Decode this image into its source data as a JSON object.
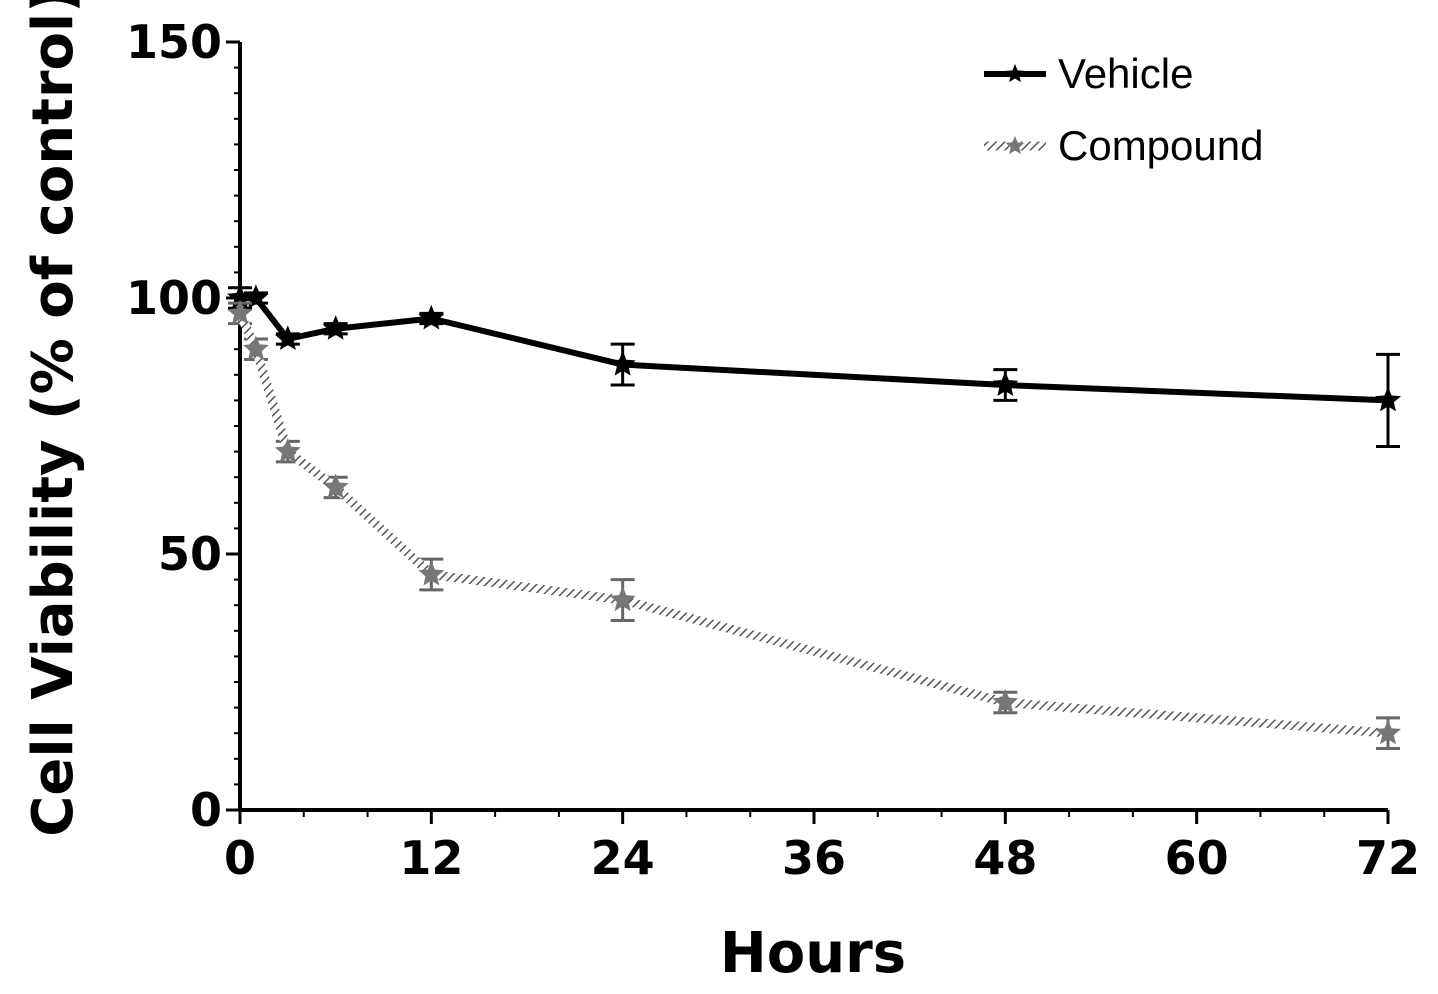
{
  "chart_data": {
    "type": "line",
    "title": "",
    "xlabel": "Hours",
    "ylabel": "Cell Viability (% of control)",
    "xlim": [
      0,
      72
    ],
    "ylim": [
      0,
      150
    ],
    "xticks": [
      0,
      12,
      24,
      36,
      48,
      60,
      72
    ],
    "yticks": [
      0,
      50,
      100,
      150
    ],
    "grid": false,
    "legend_position": "top-right",
    "series": [
      {
        "name": "Vehicle",
        "color": "#000000",
        "style": "solid",
        "x": [
          0,
          1,
          3,
          6,
          12,
          24,
          48,
          72
        ],
        "y": [
          100,
          100,
          92,
          94,
          96,
          87,
          83,
          80
        ],
        "error": [
          2,
          1,
          1,
          1,
          1,
          4,
          3,
          9
        ]
      },
      {
        "name": "Compound",
        "color": "#888888",
        "style": "hatched",
        "x": [
          0,
          1,
          3,
          6,
          12,
          24,
          48,
          72
        ],
        "y": [
          97,
          90,
          70,
          63,
          46,
          41,
          21,
          15
        ],
        "error": [
          2,
          2,
          2,
          2,
          3,
          4,
          2,
          3
        ]
      }
    ]
  }
}
